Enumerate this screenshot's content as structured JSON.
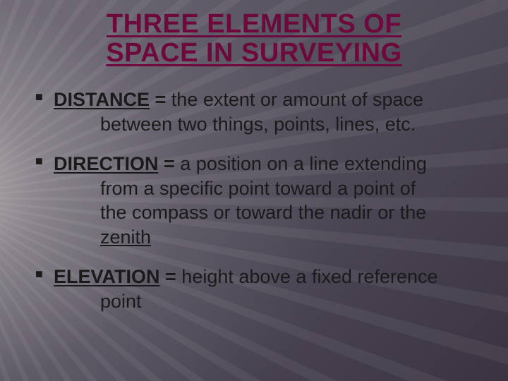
{
  "colors": {
    "title_color": "#6d093c",
    "text_color": "#1a1a1a",
    "bg_base": "#5a5560",
    "light_ray": "#fffff0"
  },
  "title": {
    "line1": "THREE ELEMENTS OF",
    "line2": "SPACE IN SURVEYING"
  },
  "items": [
    {
      "term": "DISTANCE",
      "eq": " = ",
      "def_first": "the extent or amount of space",
      "def_rest": "between two things, points, lines, etc."
    },
    {
      "term": "DIRECTION",
      "eq": " = ",
      "def_first": "a position on a line extending",
      "def_rest_a": "from a specific point toward a point of",
      "def_rest_b": "the compass or toward the nadir or the",
      "link": "zenith"
    },
    {
      "term": "ELEVATION",
      "eq": " = ",
      "def_first": "height above a fixed reference",
      "def_rest": "point"
    }
  ]
}
